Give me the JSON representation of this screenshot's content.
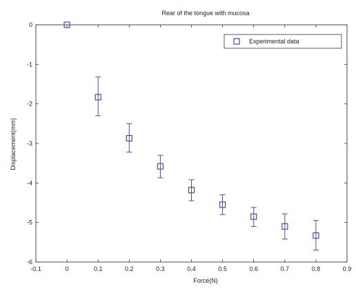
{
  "chart_data": {
    "type": "scatter",
    "title": "Rear of the tongue with mucosa",
    "xlabel": "Force(N)",
    "ylabel": "Displacement(mm)",
    "xlim": [
      -0.1,
      0.9
    ],
    "ylim": [
      -6,
      0
    ],
    "xticks": [
      -0.1,
      0,
      0.1,
      0.2,
      0.3,
      0.4,
      0.5,
      0.6,
      0.7,
      0.8,
      0.9
    ],
    "xtick_labels": [
      "-0.1",
      "0",
      "0.1",
      "0.2",
      "0.3",
      "0.4",
      "0.5",
      "0.6",
      "0.7",
      "0.8",
      "0.9"
    ],
    "yticks": [
      0,
      -1,
      -2,
      -3,
      -4,
      -5,
      -6
    ],
    "ytick_labels": [
      "0",
      "-1",
      "-2",
      "-3",
      "-4",
      "-5",
      "-6"
    ],
    "legend_position": "top-right",
    "grid": false,
    "series": [
      {
        "name": "Experimental data",
        "marker": "square",
        "color": "#4a4aa8",
        "points": [
          {
            "x": 0.0,
            "y": 0.0,
            "err_low": 0.0,
            "err_high": 0.0
          },
          {
            "x": 0.1,
            "y": -1.83,
            "err_low": -2.3,
            "err_high": -1.32
          },
          {
            "x": 0.2,
            "y": -2.87,
            "err_low": -3.22,
            "err_high": -2.5
          },
          {
            "x": 0.3,
            "y": -3.58,
            "err_low": -3.87,
            "err_high": -3.3
          },
          {
            "x": 0.4,
            "y": -4.18,
            "err_low": -4.45,
            "err_high": -3.92
          },
          {
            "x": 0.5,
            "y": -4.55,
            "err_low": -4.8,
            "err_high": -4.3
          },
          {
            "x": 0.6,
            "y": -4.85,
            "err_low": -5.1,
            "err_high": -4.62
          },
          {
            "x": 0.7,
            "y": -5.1,
            "err_low": -5.42,
            "err_high": -4.78
          },
          {
            "x": 0.8,
            "y": -5.33,
            "err_low": -5.7,
            "err_high": -4.95
          }
        ]
      }
    ]
  }
}
